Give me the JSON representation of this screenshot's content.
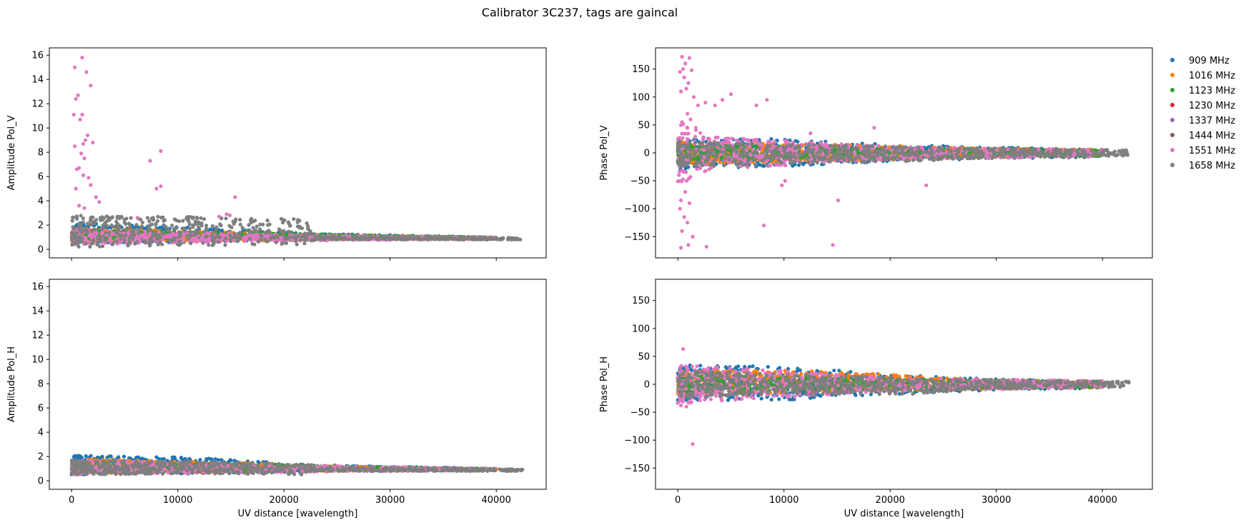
{
  "figure": {
    "title": "Calibrator 3C237, tags are gaincal"
  },
  "legend": {
    "placement": "outside-right-top",
    "entries": [
      {
        "label": "909 MHz",
        "color": "#1f77b4"
      },
      {
        "label": "1016 MHz",
        "color": "#ff7f0e"
      },
      {
        "label": "1123 MHz",
        "color": "#2ca02c"
      },
      {
        "label": "1230 MHz",
        "color": "#d62728"
      },
      {
        "label": "1337 MHz",
        "color": "#9467bd"
      },
      {
        "label": "1444 MHz",
        "color": "#8c564b"
      },
      {
        "label": "1551 MHz",
        "color": "#e377c2"
      },
      {
        "label": "1658 MHz",
        "color": "#7f7f7f"
      }
    ]
  },
  "chart_data": [
    {
      "id": "amp_v",
      "type": "scatter",
      "ylabel": "Amplitude Pol_V",
      "xlabel": "",
      "xlim": [
        -2100,
        44700
      ],
      "ylim": [
        -0.7,
        16.6
      ],
      "xticks": [
        0,
        10000,
        20000,
        30000,
        40000
      ],
      "show_xtick_labels": false,
      "yticks": [
        0,
        2,
        4,
        6,
        8,
        10,
        12,
        14,
        16
      ],
      "grid": false,
      "series_summary": [
        {
          "name": "909 MHz",
          "band": [
            [
              0,
              0.5,
              2.2
            ],
            [
              12000,
              0.6,
              1.8
            ],
            [
              23000,
              0.8,
              1.3
            ],
            [
              40000,
              0.85,
              1.0
            ]
          ]
        },
        {
          "name": "1016 MHz",
          "band": [
            [
              0,
              0.6,
              1.8
            ],
            [
              15000,
              0.7,
              1.4
            ],
            [
              30000,
              0.85,
              1.1
            ],
            [
              40000,
              0.85,
              1.0
            ]
          ]
        },
        {
          "name": "1123 MHz",
          "band": [
            [
              0,
              0.7,
              1.6
            ],
            [
              20000,
              0.8,
              1.3
            ],
            [
              40000,
              0.85,
              1.0
            ]
          ]
        },
        {
          "name": "1551 MHz",
          "band": [
            [
              0,
              0.4,
              1.6
            ],
            [
              20000,
              0.7,
              1.2
            ],
            [
              40000,
              0.85,
              1.0
            ]
          ]
        },
        {
          "name": "1658 MHz",
          "band": [
            [
              0,
              0.2,
              2.8
            ],
            [
              10000,
              0.3,
              2.7
            ],
            [
              22000,
              0.4,
              2.5
            ],
            [
              23000,
              0.8,
              1.1
            ],
            [
              42500,
              0.8,
              0.95
            ]
          ]
        }
      ],
      "outliers": [
        {
          "series": "1551 MHz",
          "points": [
            [
              1000,
              15.8
            ],
            [
              1400,
              14.6
            ],
            [
              1800,
              13.5
            ],
            [
              200,
              11.1
            ],
            [
              400,
              12.4
            ],
            [
              600,
              12.7
            ],
            [
              300,
              15.0
            ],
            [
              1000,
              11.1
            ],
            [
              800,
              10.7
            ],
            [
              1500,
              9.4
            ],
            [
              1300,
              9.0
            ],
            [
              1100,
              8.7
            ],
            [
              2000,
              8.8
            ],
            [
              300,
              8.5
            ],
            [
              900,
              7.9
            ],
            [
              1200,
              7.5
            ],
            [
              700,
              6.7
            ],
            [
              500,
              6.6
            ],
            [
              1100,
              6.1
            ],
            [
              1600,
              5.9
            ],
            [
              400,
              5.0
            ],
            [
              1800,
              5.3
            ],
            [
              2300,
              4.3
            ],
            [
              2600,
              3.9
            ],
            [
              8400,
              8.1
            ],
            [
              7400,
              7.3
            ],
            [
              8000,
              5.0
            ],
            [
              8400,
              5.2
            ],
            [
              15400,
              4.3
            ],
            [
              700,
              3.6
            ],
            [
              1200,
              3.4
            ],
            [
              14600,
              2.9
            ],
            [
              14900,
              2.8
            ],
            [
              13900,
              2.7
            ],
            [
              6200,
              2.6
            ]
          ]
        }
      ]
    },
    {
      "id": "phase_v",
      "type": "scatter",
      "ylabel": "Phase Pol_V",
      "xlabel": "",
      "xlim": [
        -2100,
        44700
      ],
      "ylim": [
        -188,
        188
      ],
      "xticks": [
        0,
        10000,
        20000,
        30000,
        40000
      ],
      "show_xtick_labels": false,
      "yticks": [
        -150,
        -100,
        -50,
        0,
        50,
        100,
        150
      ],
      "grid": false,
      "series_summary": [
        {
          "name": "909 MHz",
          "band": [
            [
              0,
              -30,
              25
            ],
            [
              10000,
              -25,
              25
            ],
            [
              20000,
              -15,
              15
            ],
            [
              30000,
              -10,
              10
            ],
            [
              40000,
              -8,
              6
            ]
          ]
        },
        {
          "name": "1016 MHz",
          "band": [
            [
              0,
              -20,
              20
            ],
            [
              15000,
              -15,
              15
            ],
            [
              30000,
              -8,
              8
            ],
            [
              40000,
              -6,
              6
            ]
          ]
        },
        {
          "name": "1123 MHz",
          "band": [
            [
              0,
              -15,
              15
            ],
            [
              20000,
              -10,
              10
            ],
            [
              40000,
              -6,
              6
            ]
          ]
        },
        {
          "name": "1551 MHz",
          "band": [
            [
              0,
              -60,
              60
            ],
            [
              3000,
              -30,
              30
            ],
            [
              20000,
              -12,
              12
            ],
            [
              40000,
              -6,
              6
            ]
          ]
        },
        {
          "name": "1658 MHz",
          "band": [
            [
              0,
              -25,
              20
            ],
            [
              10000,
              -20,
              15
            ],
            [
              22000,
              -15,
              12
            ],
            [
              30000,
              -8,
              8
            ],
            [
              42500,
              -5,
              5
            ]
          ]
        }
      ],
      "outliers": [
        {
          "series": "1551 MHz",
          "points": [
            [
              400,
              172
            ],
            [
              1100,
              170
            ],
            [
              700,
              160
            ],
            [
              200,
              145
            ],
            [
              500,
              150
            ],
            [
              1300,
              148
            ],
            [
              600,
              135
            ],
            [
              1000,
              125
            ],
            [
              800,
              115
            ],
            [
              300,
              110
            ],
            [
              1500,
              100
            ],
            [
              1900,
              85
            ],
            [
              2600,
              90
            ],
            [
              3500,
              85
            ],
            [
              4200,
              95
            ],
            [
              5000,
              105
            ],
            [
              7400,
              85
            ],
            [
              8400,
              95
            ],
            [
              900,
              70
            ],
            [
              1200,
              60
            ],
            [
              400,
              55
            ],
            [
              1700,
              45
            ],
            [
              12500,
              35
            ],
            [
              18500,
              45
            ],
            [
              700,
              -70
            ],
            [
              300,
              -85
            ],
            [
              1100,
              -90
            ],
            [
              200,
              -100
            ],
            [
              600,
              -115
            ],
            [
              900,
              -125
            ],
            [
              400,
              -140
            ],
            [
              1400,
              -150
            ],
            [
              1000,
              -165
            ],
            [
              300,
              -170
            ],
            [
              2700,
              -168
            ],
            [
              8100,
              -130
            ],
            [
              14600,
              -165
            ],
            [
              15100,
              -85
            ],
            [
              23400,
              -58
            ],
            [
              10100,
              -50
            ],
            [
              9800,
              -58
            ]
          ]
        }
      ]
    },
    {
      "id": "amp_h",
      "type": "scatter",
      "ylabel": "Amplitude Pol_H",
      "xlabel": "UV distance [wavelength]",
      "xlim": [
        -2100,
        44700
      ],
      "ylim": [
        -0.7,
        16.6
      ],
      "xticks": [
        0,
        10000,
        20000,
        30000,
        40000
      ],
      "xtick_labels": [
        "0",
        "10000",
        "20000",
        "30000",
        "40000"
      ],
      "yticks": [
        0,
        2,
        4,
        6,
        8,
        10,
        12,
        14,
        16
      ],
      "grid": false,
      "series_summary": [
        {
          "name": "909 MHz",
          "band": [
            [
              0,
              0.5,
              2.1
            ],
            [
              12000,
              0.6,
              1.9
            ],
            [
              23000,
              0.8,
              1.3
            ],
            [
              40000,
              0.85,
              1.0
            ]
          ]
        },
        {
          "name": "1016 MHz",
          "band": [
            [
              0,
              0.6,
              1.8
            ],
            [
              15000,
              0.7,
              1.5
            ],
            [
              30000,
              0.85,
              1.1
            ],
            [
              40000,
              0.85,
              1.0
            ]
          ]
        },
        {
          "name": "1123 MHz",
          "band": [
            [
              0,
              0.7,
              1.6
            ],
            [
              20000,
              0.8,
              1.3
            ],
            [
              40000,
              0.85,
              1.0
            ]
          ]
        },
        {
          "name": "1551 MHz",
          "band": [
            [
              0,
              0.5,
              1.7
            ],
            [
              20000,
              0.7,
              1.3
            ],
            [
              40000,
              0.85,
              1.0
            ]
          ]
        },
        {
          "name": "1658 MHz",
          "band": [
            [
              0,
              0.5,
              1.7
            ],
            [
              12000,
              0.6,
              1.6
            ],
            [
              22000,
              0.5,
              1.4
            ],
            [
              23000,
              0.8,
              1.1
            ],
            [
              42500,
              0.8,
              0.95
            ]
          ]
        }
      ],
      "outliers": []
    },
    {
      "id": "phase_h",
      "type": "scatter",
      "ylabel": "Phase Pol_H",
      "xlabel": "UV distance [wavelength]",
      "xlim": [
        -2100,
        44700
      ],
      "ylim": [
        -188,
        188
      ],
      "xticks": [
        0,
        10000,
        20000,
        30000,
        40000
      ],
      "xtick_labels": [
        "0",
        "10000",
        "20000",
        "30000",
        "40000"
      ],
      "yticks": [
        -150,
        -100,
        -50,
        0,
        50,
        100,
        150
      ],
      "grid": false,
      "series_summary": [
        {
          "name": "909 MHz",
          "band": [
            [
              0,
              -30,
              35
            ],
            [
              10000,
              -28,
              32
            ],
            [
              20000,
              -18,
              18
            ],
            [
              30000,
              -10,
              10
            ],
            [
              40000,
              -7,
              6
            ]
          ]
        },
        {
          "name": "1016 MHz",
          "band": [
            [
              0,
              -20,
              25
            ],
            [
              12000,
              -15,
              25
            ],
            [
              30000,
              -8,
              8
            ],
            [
              40000,
              -6,
              6
            ]
          ]
        },
        {
          "name": "1123 MHz",
          "band": [
            [
              0,
              -15,
              15
            ],
            [
              20000,
              -10,
              10
            ],
            [
              40000,
              -6,
              6
            ]
          ]
        },
        {
          "name": "1551 MHz",
          "band": [
            [
              0,
              -35,
              35
            ],
            [
              20000,
              -12,
              12
            ],
            [
              40000,
              -6,
              6
            ]
          ]
        },
        {
          "name": "1658 MHz",
          "band": [
            [
              0,
              -25,
              25
            ],
            [
              10000,
              -18,
              18
            ],
            [
              22000,
              -18,
              12
            ],
            [
              30000,
              -8,
              8
            ],
            [
              42500,
              -5,
              5
            ]
          ]
        }
      ],
      "outliers": [
        {
          "series": "1551 MHz",
          "points": [
            [
              500,
              63
            ],
            [
              1400,
              -107
            ],
            [
              800,
              -40
            ],
            [
              300,
              -38
            ],
            [
              1000,
              -32
            ]
          ]
        }
      ]
    }
  ]
}
